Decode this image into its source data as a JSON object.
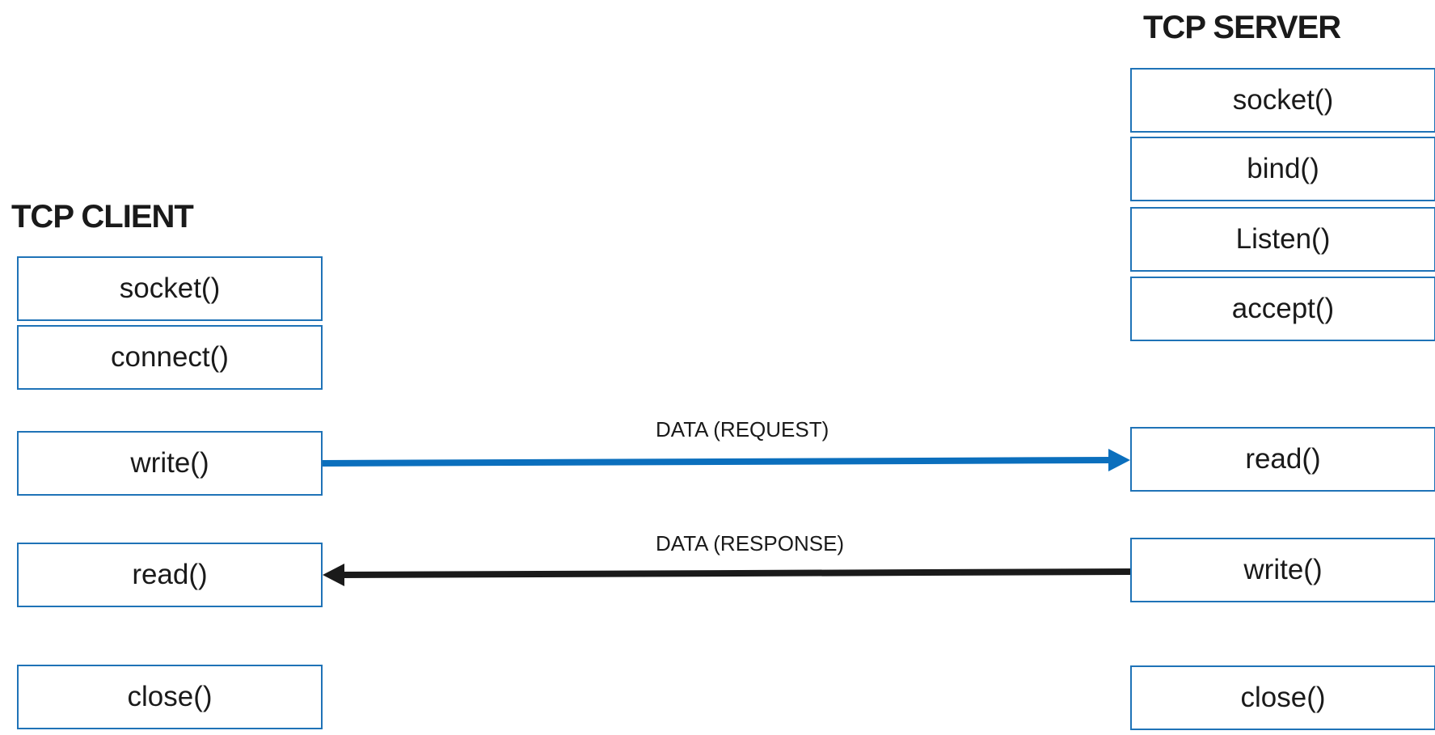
{
  "client": {
    "title": "TCP CLIENT",
    "steps": [
      "socket()",
      "connect()",
      "write()",
      "read()",
      "close()"
    ]
  },
  "server": {
    "title": "TCP SERVER",
    "steps": [
      "socket()",
      "bind()",
      "Listen()",
      "accept()",
      "read()",
      "write()",
      "close()"
    ]
  },
  "arrows": {
    "request": {
      "label": "DATA (REQUEST)",
      "color": "#0b6fbd",
      "direction": "client-to-server"
    },
    "response": {
      "label": "DATA (RESPONSE)",
      "color": "#1a1a1a",
      "direction": "server-to-client"
    }
  },
  "colors": {
    "box_border": "#1f73b7",
    "text": "#1a1a1a"
  }
}
